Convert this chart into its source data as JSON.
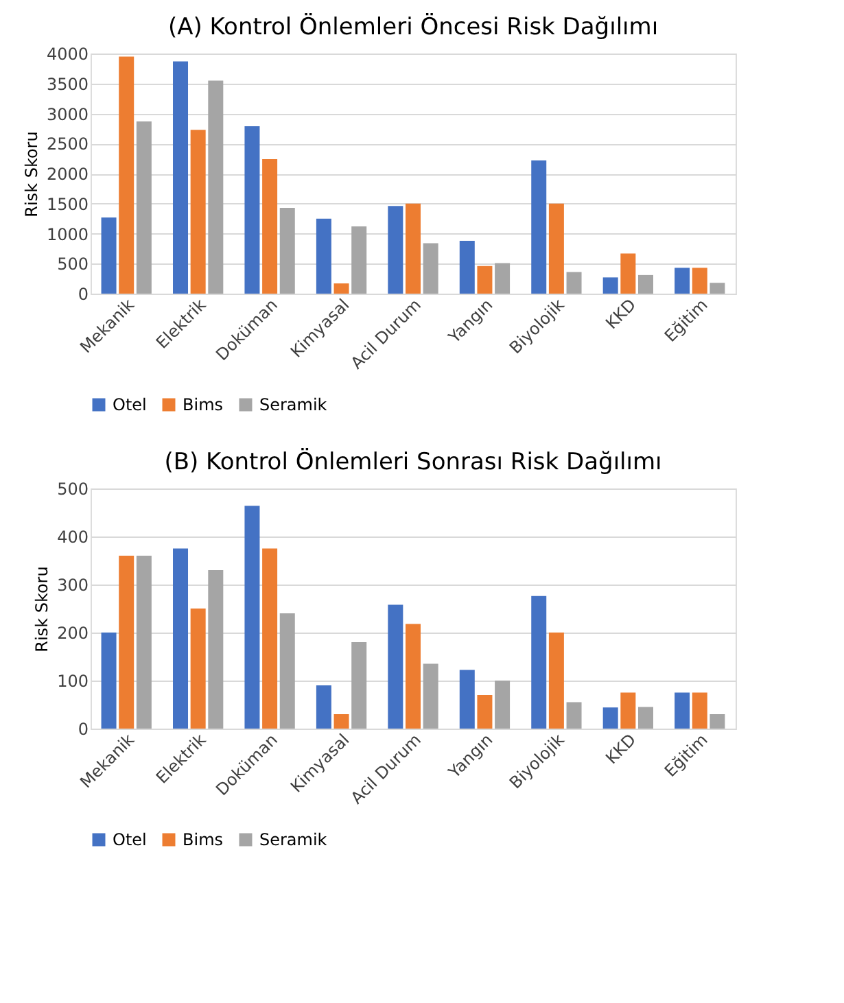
{
  "chart_data": [
    {
      "type": "bar",
      "title": "(A) Kontrol Önlemleri Öncesi Risk Dağılımı",
      "ylabel": "Risk Skoru",
      "categories": [
        "Mekanik",
        "Elektrik",
        "Doküman",
        "Kimyasal",
        "Acil Durum",
        "Yangın",
        "Biyolojik",
        "KKD",
        "Eğitim"
      ],
      "series": [
        {
          "name": "Otel",
          "color": "#4472c4",
          "values": [
            1270,
            3870,
            2790,
            1250,
            1460,
            880,
            2220,
            270,
            430
          ]
        },
        {
          "name": "Bims",
          "color": "#ed7d31",
          "values": [
            3950,
            2730,
            2240,
            170,
            1500,
            460,
            1500,
            670,
            430
          ]
        },
        {
          "name": "Seramik",
          "color": "#a5a5a5",
          "values": [
            2870,
            3550,
            1430,
            1120,
            840,
            510,
            360,
            310,
            180
          ]
        }
      ],
      "ylim": [
        0,
        4000
      ],
      "yticks": [
        0,
        500,
        1000,
        1500,
        2000,
        2500,
        3000,
        3500,
        4000
      ],
      "grid": "y",
      "legend": "bottom"
    },
    {
      "type": "bar",
      "title": "(B) Kontrol Önlemleri Sonrası Risk Dağılımı",
      "ylabel": "Risk Skoru",
      "categories": [
        "Mekanik",
        "Elektrik",
        "Doküman",
        "Kimyasal",
        "Acil Durum",
        "Yangın",
        "Biyolojik",
        "KKD",
        "Eğitim"
      ],
      "series": [
        {
          "name": "Otel",
          "color": "#4472c4",
          "values": [
            200,
            375,
            464,
            90,
            258,
            122,
            276,
            44,
            75
          ]
        },
        {
          "name": "Bims",
          "color": "#ed7d31",
          "values": [
            360,
            250,
            375,
            30,
            218,
            70,
            200,
            75,
            75
          ]
        },
        {
          "name": "Seramik",
          "color": "#a5a5a5",
          "values": [
            360,
            330,
            240,
            180,
            135,
            100,
            55,
            45,
            30
          ]
        }
      ],
      "ylim": [
        0,
        500
      ],
      "yticks": [
        0,
        100,
        200,
        300,
        400,
        500
      ],
      "grid": "y",
      "legend": "bottom"
    }
  ]
}
